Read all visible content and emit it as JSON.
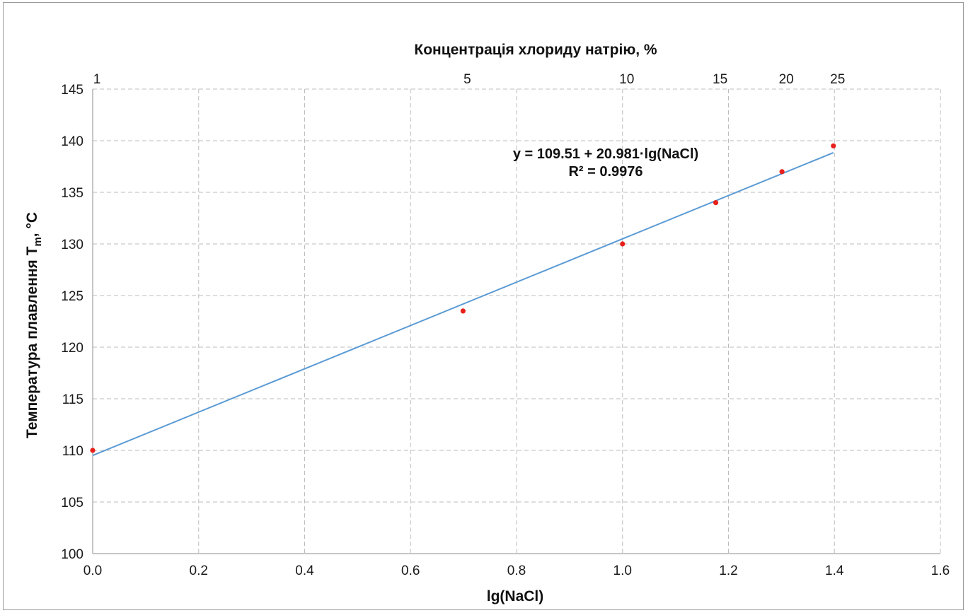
{
  "chart_data": {
    "type": "scatter",
    "xlabel": "lg(NaCl)",
    "x2label": "Концентрація хлориду натрію, %",
    "ylabel": "Температура плавлення T",
    "ylabel_sub": "m",
    "ylabel_unit": ", °C",
    "xlim": [
      0.0,
      1.6
    ],
    "ylim": [
      100,
      145
    ],
    "x_ticks": [
      0.0,
      0.2,
      0.4,
      0.6,
      0.8,
      1.0,
      1.2,
      1.4,
      1.6
    ],
    "x_tick_labels": [
      "0.0",
      "0.2",
      "0.4",
      "0.6",
      "0.8",
      "1.0",
      "1.2",
      "1.4",
      "1.6"
    ],
    "y_ticks": [
      100,
      105,
      110,
      115,
      120,
      125,
      130,
      135,
      140,
      145
    ],
    "y_tick_labels": [
      "100",
      "105",
      "110",
      "115",
      "120",
      "125",
      "130",
      "135",
      "140",
      "145"
    ],
    "top_axis": {
      "values": [
        1,
        5,
        10,
        15,
        20,
        25
      ],
      "labels": [
        "1",
        "5",
        "10",
        "15",
        "20",
        "25"
      ]
    },
    "grid": true,
    "series": [
      {
        "type": "scatter",
        "color": "#e8201c",
        "x": [
          0.0,
          0.699,
          1.0,
          1.176,
          1.301,
          1.398
        ],
        "y": [
          110.0,
          123.5,
          130.0,
          134.0,
          137.0,
          139.5
        ]
      }
    ],
    "trendline": {
      "color": "#5b9bd5",
      "intercept": 109.51,
      "slope": 20.981,
      "x_range": [
        0.0,
        1.398
      ],
      "equation": "y = 109.51 + 20.981·lg(NaCl)",
      "r2": "R² = 0.9976"
    }
  }
}
